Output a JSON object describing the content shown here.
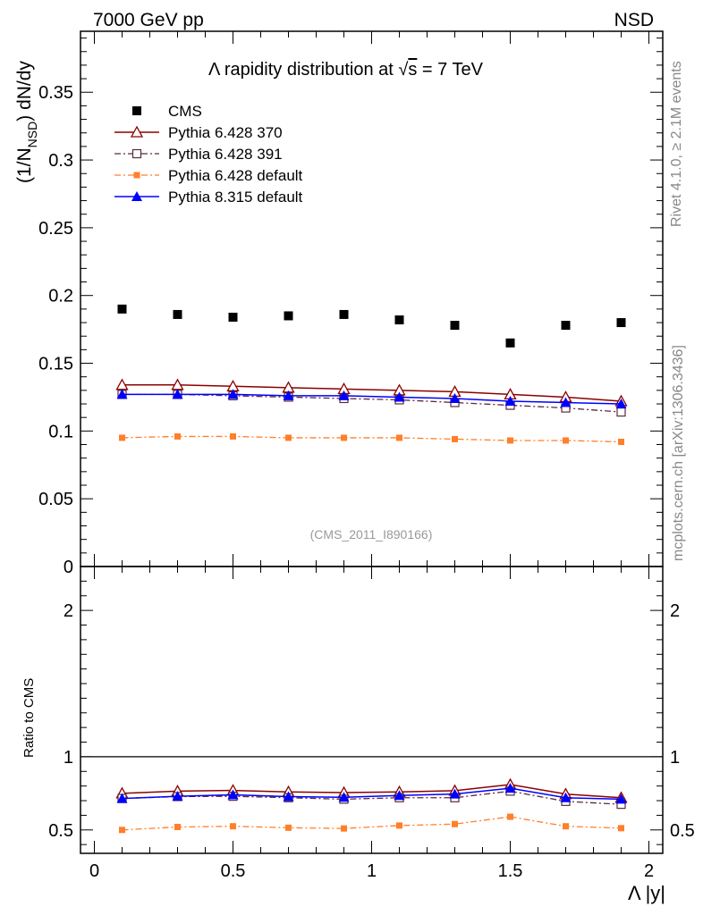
{
  "header": {
    "left": "7000 GeV pp",
    "right": "NSD"
  },
  "side": {
    "rivet": "Rivet 4.1.0, ≥ 2.1M events",
    "mcplots": "mcplots.cern.ch [arXiv:1306.3436]"
  },
  "main_panel": {
    "title_prefix": "Λ rapidity distribution at ",
    "title_sqrt": "√",
    "title_s": "s",
    "title_suffix": " = 7 TeV",
    "ylabel_a": "(1/N",
    "ylabel_sub": "NSD",
    "ylabel_b": ") dN/dy",
    "analysis_id": "(CMS_2011_I890166)"
  },
  "ratio_panel": {
    "ylabel": "Ratio to CMS"
  },
  "xaxis": {
    "label": "Λ |y|"
  },
  "colors": {
    "cms": "#000000",
    "p370": "#8b0000",
    "p391": "#5c2a3a",
    "p6def": "#ff7f2a",
    "p8def": "#0000ff"
  },
  "chart_data": [
    {
      "type": "scatter",
      "title": "Λ rapidity distribution at √s = 7 TeV",
      "xlabel": "Λ |y|",
      "ylabel": "(1/N_NSD) dN/dy",
      "xlim": [
        -0.05,
        2.05
      ],
      "ylim": [
        0,
        0.395
      ],
      "xticks": [
        "0",
        "0.5",
        "1",
        "1.5",
        "2"
      ],
      "yticks": [
        "0",
        "0.05",
        "0.1",
        "0.15",
        "0.2",
        "0.25",
        "0.3",
        "0.35"
      ],
      "x": [
        0.1,
        0.3,
        0.5,
        0.7,
        0.9,
        1.1,
        1.3,
        1.5,
        1.7,
        1.9
      ],
      "series": [
        {
          "name": "CMS",
          "values": [
            0.19,
            0.186,
            0.184,
            0.185,
            0.186,
            0.182,
            0.178,
            0.165,
            0.178,
            0.18
          ]
        },
        {
          "name": "Pythia 6.428 370",
          "values": [
            0.134,
            0.134,
            0.133,
            0.132,
            0.131,
            0.13,
            0.129,
            0.127,
            0.125,
            0.122
          ]
        },
        {
          "name": "Pythia 6.428 391",
          "values": [
            0.127,
            0.127,
            0.126,
            0.125,
            0.124,
            0.123,
            0.121,
            0.119,
            0.117,
            0.114
          ]
        },
        {
          "name": "Pythia 6.428 default",
          "values": [
            0.095,
            0.096,
            0.096,
            0.095,
            0.095,
            0.095,
            0.094,
            0.093,
            0.093,
            0.092
          ]
        },
        {
          "name": "Pythia 8.315 default",
          "values": [
            0.127,
            0.127,
            0.127,
            0.126,
            0.126,
            0.125,
            0.124,
            0.122,
            0.121,
            0.12
          ]
        }
      ],
      "legend": "top-left",
      "annotation": "(CMS_2011_I890166)"
    },
    {
      "type": "line",
      "ylabel": "Ratio to CMS",
      "xlabel": "Λ |y|",
      "xlim": [
        -0.05,
        2.05
      ],
      "ylim": [
        0.34,
        2.3
      ],
      "yticks": [
        "0.5",
        "1",
        "2"
      ],
      "reference_line": 1,
      "x": [
        0.1,
        0.3,
        0.5,
        0.7,
        0.9,
        1.1,
        1.3,
        1.5,
        1.7,
        1.9
      ],
      "series": [
        {
          "name": "Pythia 6.428 370",
          "values": [
            0.75,
            0.765,
            0.77,
            0.76,
            0.755,
            0.76,
            0.768,
            0.81,
            0.745,
            0.72
          ]
        },
        {
          "name": "Pythia 6.428 391",
          "values": [
            0.715,
            0.728,
            0.73,
            0.72,
            0.71,
            0.72,
            0.72,
            0.765,
            0.695,
            0.675
          ]
        },
        {
          "name": "Pythia 6.428 default",
          "values": [
            0.5,
            0.52,
            0.525,
            0.515,
            0.51,
            0.53,
            0.54,
            0.59,
            0.525,
            0.512
          ]
        },
        {
          "name": "Pythia 8.315 default",
          "values": [
            0.715,
            0.73,
            0.74,
            0.728,
            0.723,
            0.735,
            0.745,
            0.785,
            0.72,
            0.71
          ]
        }
      ]
    }
  ]
}
